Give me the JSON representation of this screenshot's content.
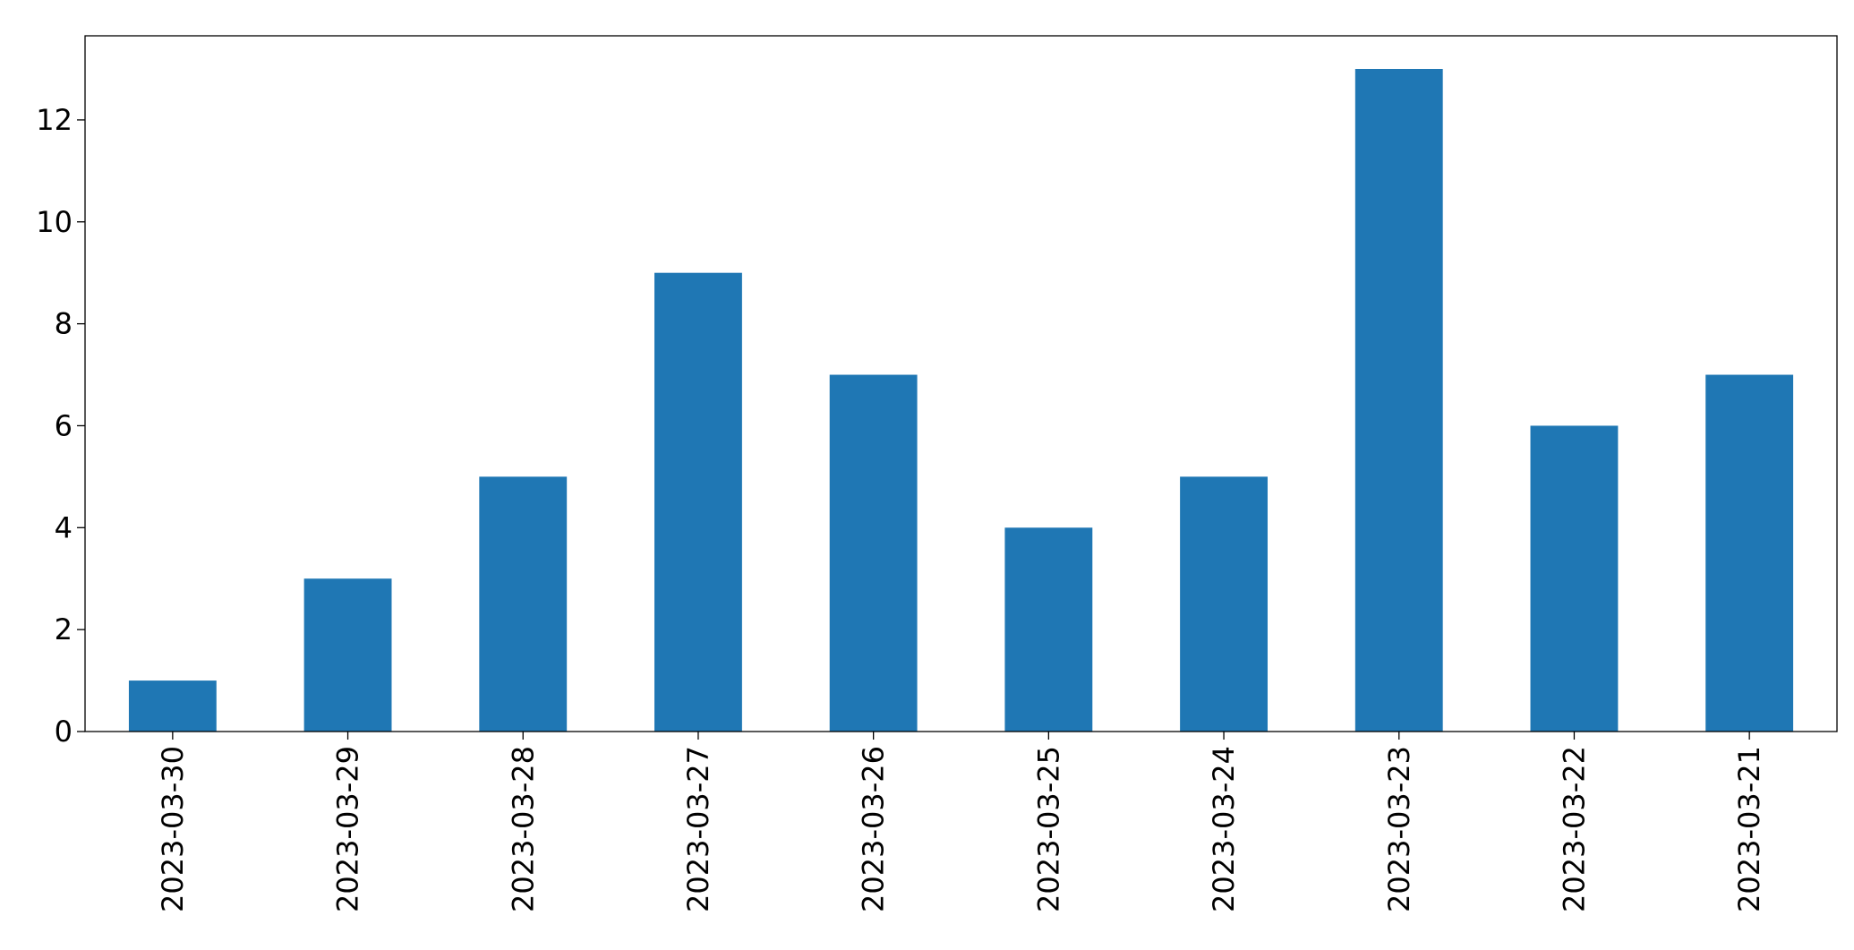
{
  "chart_data": {
    "type": "bar",
    "categories": [
      "2023-03-30",
      "2023-03-29",
      "2023-03-28",
      "2023-03-27",
      "2023-03-26",
      "2023-03-25",
      "2023-03-24",
      "2023-03-23",
      "2023-03-22",
      "2023-03-21"
    ],
    "values": [
      1,
      3,
      5,
      9,
      7,
      4,
      5,
      13,
      6,
      7
    ],
    "color": "#1f77b4",
    "ylim": [
      0,
      13.65
    ],
    "yticks": [
      0,
      2,
      4,
      6,
      8,
      10,
      12
    ],
    "grid": false
  }
}
